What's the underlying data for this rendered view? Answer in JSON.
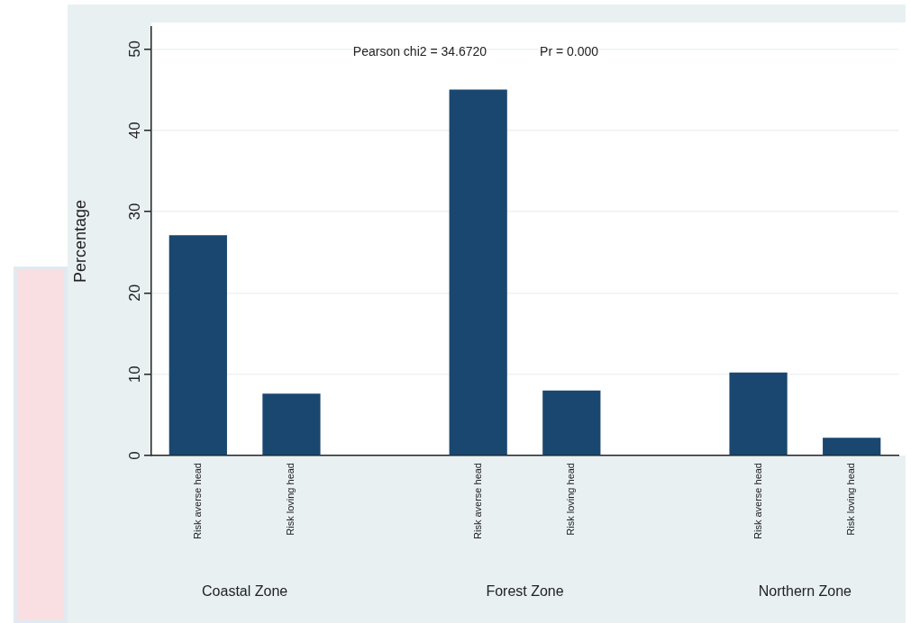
{
  "chart_data": {
    "type": "bar",
    "ylabel": "Percentage",
    "annotations": [
      "Pearson chi2 = 34.6720",
      "Pr = 0.000",
      "Coastal Zone",
      "Forest Zone",
      "Northern Zone"
    ],
    "categories": [
      "Risk averse head",
      "Risk loving head",
      null,
      "Risk averse head",
      "Risk loving head",
      null,
      "Risk averse head",
      "Risk loving head"
    ],
    "series": [
      {
        "color": "#1a476f",
        "values": [
          27.1,
          7.6,
          null,
          45.0,
          8.0,
          null,
          10.2,
          2.2
        ]
      }
    ],
    "ylim": [
      0,
      52.7
    ],
    "yticks": [
      0,
      10,
      20,
      30,
      40,
      50
    ],
    "grid": "y",
    "legend": false
  }
}
